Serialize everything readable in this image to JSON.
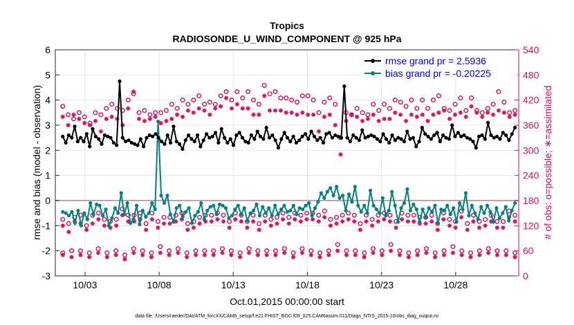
{
  "chart_data": {
    "type": "line",
    "title": "Tropics",
    "subtitle": "RADIOSONDE_U_WIND_COMPONENT @ 925 hPa",
    "xlabel": "Oct.01,2015 00:00:00 start",
    "ylabel": "rmse and bias (model - observation)",
    "ylabel_right": "# of obs: o=possible; ∗=assimilated",
    "footer": "data file: /Users/raeder/DAI/ATM_forcXX/CAM6_setup/f.e21.FHIST_BGC.f09_025.CAM6assim.011/Diags_NTrS_2015-10/obs_diag_output.nc",
    "xlim": [
      1,
      32.25
    ],
    "ylim": [
      -3,
      6
    ],
    "ylim_right": [
      0,
      540
    ],
    "yticks": [
      -3,
      -2,
      -1,
      0,
      1,
      2,
      3,
      4,
      5,
      6
    ],
    "yticks_right": [
      0,
      60,
      120,
      180,
      240,
      300,
      360,
      420,
      480,
      540
    ],
    "xticks": [
      {
        "value": 3,
        "label": "10/03"
      },
      {
        "value": 8,
        "label": "10/08"
      },
      {
        "value": 13,
        "label": "10/13"
      },
      {
        "value": 18,
        "label": "10/18"
      },
      {
        "value": 23,
        "label": "10/23"
      },
      {
        "value": 28,
        "label": "10/28"
      }
    ],
    "grid": true,
    "legend_position": "top-right",
    "colors": {
      "rmse": "#000000",
      "bias": "#008080",
      "obs": "#d01160",
      "zero_line": "#c8a0a0",
      "grid": "#e6e6e6"
    },
    "series": [
      {
        "name": "rmse",
        "legend": "rmse grand pr = 2.5936",
        "values": [
          2.55,
          2.3,
          2.6,
          2.5,
          2.95,
          2.35,
          2.5,
          2.35,
          2.65,
          2.15,
          2.85,
          2.55,
          2.45,
          2.25,
          2.6,
          2.55,
          2.5,
          2.3,
          2.2,
          4.75,
          2.5,
          2.35,
          2.4,
          2.3,
          2.25,
          2.2,
          2.45,
          2.15,
          2.5,
          2.6,
          2.55,
          2.65,
          2.5,
          2.35,
          2.25,
          2.6,
          2.3,
          2.95,
          2.35,
          2.25,
          2.05,
          2.4,
          2.6,
          2.45,
          2.35,
          2.6,
          2.15,
          2.4,
          2.65,
          2.5,
          2.55,
          2.7,
          2.3,
          2.85,
          2.5,
          2.3,
          2.45,
          2.2,
          2.6,
          2.7,
          2.5,
          2.35,
          2.3,
          2.6,
          2.45,
          2.75,
          2.55,
          2.45,
          2.9,
          2.5,
          2.6,
          2.4,
          2.1,
          2.45,
          2.7,
          2.5,
          2.35,
          2.55,
          2.3,
          2.4,
          2.55,
          2.65,
          2.45,
          2.75,
          2.55,
          2.4,
          2.5,
          2.3,
          2.65,
          2.7,
          2.5,
          2.6,
          2.55,
          2.5,
          4.55,
          2.5,
          2.35,
          2.6,
          2.5,
          2.4,
          2.8,
          2.5,
          2.55,
          2.6,
          2.55,
          2.45,
          2.35,
          2.65,
          2.45,
          2.3,
          2.6,
          2.4,
          2.5,
          2.45,
          2.35,
          2.75,
          2.45,
          2.5,
          2.15,
          2.35,
          2.9,
          2.65,
          2.55,
          2.45,
          2.6,
          2.7,
          2.35,
          2.6,
          2.5,
          2.45,
          3.0,
          2.55,
          2.7,
          2.55,
          2.6,
          2.5,
          2.45,
          2.35,
          2.1,
          2.55,
          2.6,
          2.45,
          3.1,
          2.6,
          2.5,
          2.55,
          2.45,
          2.7,
          2.6,
          2.4,
          2.65,
          2.9
        ]
      },
      {
        "name": "bias",
        "legend": "bias grand pr = -0.20225",
        "values": [
          -0.45,
          -0.5,
          -0.6,
          -0.45,
          -0.9,
          -0.4,
          -1.0,
          -0.5,
          -0.75,
          -0.1,
          -0.55,
          -0.15,
          -0.2,
          -0.6,
          -0.35,
          -1.0,
          -0.7,
          -0.3,
          -0.5,
          0.3,
          -0.55,
          -0.1,
          -0.9,
          -0.75,
          -0.2,
          -0.95,
          -0.4,
          -0.65,
          -0.5,
          -0.1,
          -0.35,
          3.15,
          0.2,
          -0.1,
          0.2,
          -0.55,
          -0.85,
          -0.3,
          -0.2,
          -0.65,
          -0.45,
          -0.3,
          -0.9,
          -0.6,
          -0.45,
          -0.1,
          -0.75,
          -0.4,
          -0.25,
          -0.2,
          -0.55,
          -0.15,
          -0.2,
          -0.3,
          -0.7,
          -0.6,
          -0.35,
          -0.2,
          -0.55,
          -0.3,
          -0.8,
          -0.5,
          -0.4,
          -0.15,
          -0.6,
          -0.25,
          -0.5,
          -0.3,
          -0.6,
          -0.2,
          -0.55,
          -0.35,
          -0.2,
          -0.45,
          -0.4,
          -0.2,
          -0.55,
          -0.3,
          -0.35,
          -0.2,
          -0.1,
          -0.6,
          -0.3,
          -0.05,
          0.3,
          0.1,
          0.35,
          0.5,
          0.2,
          0.55,
          0.1,
          0.2,
          -0.4,
          0.25,
          -0.05,
          0.55,
          -0.2,
          -0.45,
          -0.2,
          -0.5,
          0.4,
          -0.2,
          -0.35,
          -0.5,
          0.1,
          -0.6,
          -0.4,
          0.35,
          -0.2,
          -0.85,
          -0.3,
          -0.1,
          0.45,
          -0.4,
          -0.15,
          -0.35,
          -0.85,
          -0.35,
          -0.65,
          -0.3,
          -0.45,
          -0.2,
          -0.9,
          -0.35,
          -0.4,
          -0.2,
          -0.55,
          -0.3,
          -0.85,
          -0.1,
          -0.35,
          0.3,
          -0.6,
          -0.2,
          -0.5,
          -0.75,
          -0.25,
          -0.5,
          -0.2,
          -0.45,
          -0.85,
          -0.3,
          -0.7,
          -0.5,
          -0.25,
          -0.8,
          -0.4,
          -0.1
        ]
      },
      {
        "name": "possible_upper",
        "values": [
          405,
          385,
          375,
          390,
          380,
          365,
          390,
          385,
          400,
          410,
          400,
          395,
          420,
          435,
          390,
          395,
          385,
          390,
          390,
          395,
          410,
          400,
          420,
          410,
          420,
          430,
          410,
          415,
          410,
          430,
          440,
          420,
          440,
          425,
          440,
          420,
          410,
          455,
          435,
          440,
          425,
          425,
          420,
          415,
          430,
          430,
          420,
          390,
          415,
          425,
          410,
          330,
          390,
          385,
          400,
          390,
          385,
          410,
          395,
          410,
          400,
          420,
          415,
          405,
          420,
          400,
          420,
          400,
          420,
          430,
          400,
          395,
          410,
          425,
          395,
          425,
          395,
          390,
          400,
          410,
          440,
          415,
          390,
          395
        ]
      },
      {
        "name": "assimilated_upper",
        "values": [
          380,
          360,
          385,
          375,
          365,
          360,
          370,
          345,
          375,
          380,
          375,
          360,
          400,
          440,
          375,
          370,
          375,
          380,
          365,
          370,
          375,
          385,
          380,
          395,
          390,
          400,
          395,
          385,
          400,
          405,
          425,
          400,
          410,
          400,
          400,
          385,
          385,
          430,
          395,
          395,
          395,
          390,
          390,
          385,
          390,
          385,
          385,
          345,
          380,
          385,
          360,
          290,
          370,
          385,
          380,
          370,
          375,
          385,
          370,
          375,
          375,
          390,
          385,
          370,
          385,
          380,
          385,
          370,
          385,
          390,
          395,
          375,
          385,
          390,
          380,
          405,
          390,
          380,
          390,
          385,
          395,
          390,
          380,
          385
        ]
      },
      {
        "name": "possible_mid",
        "values": [
          135,
          125,
          140,
          145,
          120,
          145,
          150,
          135,
          130,
          135,
          160,
          145,
          145,
          150,
          125,
          150,
          130,
          140,
          140,
          145,
          150,
          125,
          130,
          140,
          145,
          145,
          150,
          145,
          130,
          150,
          145,
          130,
          145,
          125,
          145,
          135,
          140,
          150,
          140,
          150,
          145,
          150,
          150,
          145,
          155,
          135,
          140,
          145,
          150,
          145,
          125,
          145,
          135,
          145,
          150,
          145,
          130,
          150,
          145,
          145,
          140,
          140,
          145,
          125,
          150,
          135,
          130,
          155,
          125,
          145,
          130,
          135,
          145,
          130,
          130,
          155,
          145
        ]
      },
      {
        "name": "assimilated_mid",
        "values": [
          120,
          105,
          130,
          125,
          110,
          125,
          135,
          120,
          115,
          120,
          145,
          130,
          130,
          135,
          110,
          135,
          115,
          125,
          125,
          130,
          135,
          110,
          115,
          125,
          130,
          130,
          135,
          130,
          115,
          135,
          130,
          115,
          130,
          110,
          130,
          120,
          125,
          135,
          125,
          135,
          130,
          135,
          135,
          130,
          140,
          120,
          125,
          130,
          135,
          130,
          110,
          130,
          120,
          130,
          135,
          130,
          115,
          135,
          130,
          130,
          125,
          125,
          130,
          110,
          135,
          120,
          115,
          140,
          110,
          130,
          115,
          120,
          130,
          115,
          115,
          140,
          130
        ]
      },
      {
        "name": "possible_low",
        "values": [
          55,
          60,
          60,
          55,
          65,
          55,
          60,
          50,
          65,
          60,
          55,
          70,
          60,
          65,
          55,
          60,
          60,
          60,
          65,
          60,
          55,
          65,
          60,
          60,
          60,
          65,
          55,
          65,
          60,
          55,
          60,
          75,
          60,
          60,
          55,
          65,
          60,
          75,
          60,
          55,
          60,
          65,
          55,
          60,
          70,
          60,
          55,
          60,
          65,
          60,
          60,
          55
        ]
      },
      {
        "name": "assimilated_low",
        "values": [
          50,
          45,
          50,
          45,
          55,
          45,
          50,
          40,
          55,
          50,
          45,
          55,
          50,
          55,
          45,
          50,
          50,
          50,
          55,
          50,
          45,
          55,
          50,
          50,
          50,
          55,
          45,
          55,
          50,
          45,
          50,
          60,
          50,
          50,
          45,
          55,
          50,
          60,
          50,
          45,
          50,
          55,
          45,
          50,
          55,
          50,
          45,
          50,
          55,
          50,
          50,
          45
        ]
      }
    ]
  }
}
